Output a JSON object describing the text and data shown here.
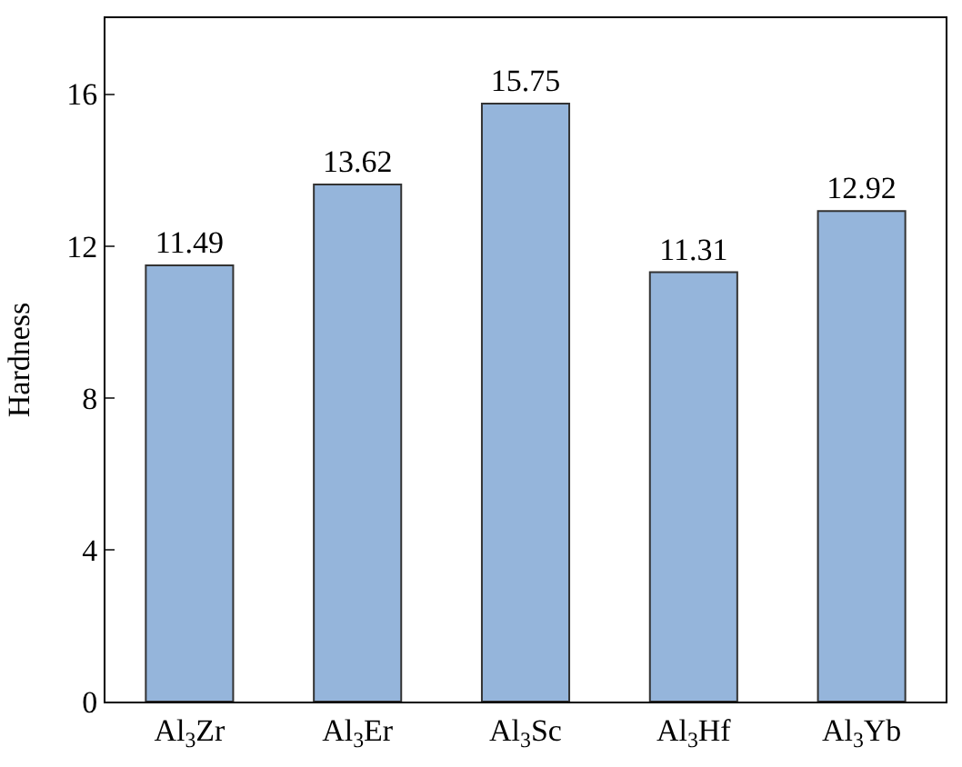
{
  "chart_data": {
    "type": "bar",
    "ylabel": "Hardness",
    "categories": [
      "Al$_{3}$Zr",
      "Al$_{3}$Er",
      "Al$_{3}$Sc",
      "Al$_{3}$Hf",
      "Al$_{3}$Yb"
    ],
    "values": [
      11.49,
      13.62,
      15.75,
      11.31,
      12.92
    ],
    "color": "#95b5db",
    "ylim": [
      0,
      18
    ],
    "yticks": [
      0,
      4,
      8,
      12,
      16
    ],
    "data_labels": true
  }
}
